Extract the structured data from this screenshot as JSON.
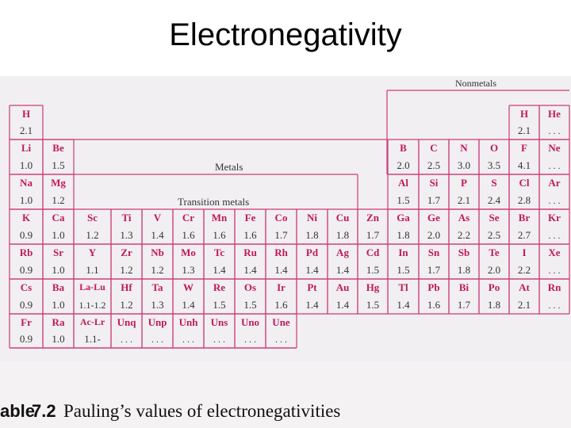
{
  "page": {
    "title": "Electronegativity"
  },
  "figure": {
    "labels": {
      "nonmetals": "Nonmetals",
      "metals": "Metals",
      "transition_metals": "Transition metals"
    },
    "caption": {
      "prefix": "able",
      "number": "7.2",
      "text": "Pauling’s values of electronegativities"
    },
    "colors": {
      "symbol": "#c2185b",
      "grid_line": "#cc3b7a",
      "value": "#333333"
    },
    "elements": [
      {
        "col": 0,
        "row": 0,
        "symbol": "H",
        "value": "2.1"
      },
      {
        "col": 16,
        "row": 0,
        "symbol": "H",
        "value": "2.1"
      },
      {
        "col": 17,
        "row": 0,
        "symbol": "He",
        "value": ". . ."
      },
      {
        "col": 0,
        "row": 1,
        "symbol": "Li",
        "value": "1.0"
      },
      {
        "col": 1,
        "row": 1,
        "symbol": "Be",
        "value": "1.5"
      },
      {
        "col": 12,
        "row": 1,
        "symbol": "B",
        "value": "2.0"
      },
      {
        "col": 13,
        "row": 1,
        "symbol": "C",
        "value": "2.5"
      },
      {
        "col": 14,
        "row": 1,
        "symbol": "N",
        "value": "3.0"
      },
      {
        "col": 15,
        "row": 1,
        "symbol": "O",
        "value": "3.5"
      },
      {
        "col": 16,
        "row": 1,
        "symbol": "F",
        "value": "4.1"
      },
      {
        "col": 17,
        "row": 1,
        "symbol": "Ne",
        "value": ". . ."
      },
      {
        "col": 0,
        "row": 2,
        "symbol": "Na",
        "value": "1.0"
      },
      {
        "col": 1,
        "row": 2,
        "symbol": "Mg",
        "value": "1.2"
      },
      {
        "col": 12,
        "row": 2,
        "symbol": "Al",
        "value": "1.5"
      },
      {
        "col": 13,
        "row": 2,
        "symbol": "Si",
        "value": "1.7"
      },
      {
        "col": 14,
        "row": 2,
        "symbol": "P",
        "value": "2.1"
      },
      {
        "col": 15,
        "row": 2,
        "symbol": "S",
        "value": "2.4"
      },
      {
        "col": 16,
        "row": 2,
        "symbol": "Cl",
        "value": "2.8"
      },
      {
        "col": 17,
        "row": 2,
        "symbol": "Ar",
        "value": ". . ."
      },
      {
        "col": 0,
        "row": 3,
        "symbol": "K",
        "value": "0.9"
      },
      {
        "col": 1,
        "row": 3,
        "symbol": "Ca",
        "value": "1.0"
      },
      {
        "col": 2,
        "row": 3,
        "symbol": "Sc",
        "value": "1.2"
      },
      {
        "col": 3,
        "row": 3,
        "symbol": "Ti",
        "value": "1.3"
      },
      {
        "col": 4,
        "row": 3,
        "symbol": "V",
        "value": "1.4"
      },
      {
        "col": 5,
        "row": 3,
        "symbol": "Cr",
        "value": "1.6"
      },
      {
        "col": 6,
        "row": 3,
        "symbol": "Mn",
        "value": "1.6"
      },
      {
        "col": 7,
        "row": 3,
        "symbol": "Fe",
        "value": "1.6"
      },
      {
        "col": 8,
        "row": 3,
        "symbol": "Co",
        "value": "1.7"
      },
      {
        "col": 9,
        "row": 3,
        "symbol": "Ni",
        "value": "1.8"
      },
      {
        "col": 10,
        "row": 3,
        "symbol": "Cu",
        "value": "1.8"
      },
      {
        "col": 11,
        "row": 3,
        "symbol": "Zn",
        "value": "1.7"
      },
      {
        "col": 12,
        "row": 3,
        "symbol": "Ga",
        "value": "1.8"
      },
      {
        "col": 13,
        "row": 3,
        "symbol": "Ge",
        "value": "2.0"
      },
      {
        "col": 14,
        "row": 3,
        "symbol": "As",
        "value": "2.2"
      },
      {
        "col": 15,
        "row": 3,
        "symbol": "Se",
        "value": "2.5"
      },
      {
        "col": 16,
        "row": 3,
        "symbol": "Br",
        "value": "2.7"
      },
      {
        "col": 17,
        "row": 3,
        "symbol": "Kr",
        "value": ". . ."
      },
      {
        "col": 0,
        "row": 4,
        "symbol": "Rb",
        "value": "0.9"
      },
      {
        "col": 1,
        "row": 4,
        "symbol": "Sr",
        "value": "1.0"
      },
      {
        "col": 2,
        "row": 4,
        "symbol": "Y",
        "value": "1.1"
      },
      {
        "col": 3,
        "row": 4,
        "symbol": "Zr",
        "value": "1.2"
      },
      {
        "col": 4,
        "row": 4,
        "symbol": "Nb",
        "value": "1.2"
      },
      {
        "col": 5,
        "row": 4,
        "symbol": "Mo",
        "value": "1.3"
      },
      {
        "col": 6,
        "row": 4,
        "symbol": "Tc",
        "value": "1.4"
      },
      {
        "col": 7,
        "row": 4,
        "symbol": "Ru",
        "value": "1.4"
      },
      {
        "col": 8,
        "row": 4,
        "symbol": "Rh",
        "value": "1.4"
      },
      {
        "col": 9,
        "row": 4,
        "symbol": "Pd",
        "value": "1.4"
      },
      {
        "col": 10,
        "row": 4,
        "symbol": "Ag",
        "value": "1.4"
      },
      {
        "col": 11,
        "row": 4,
        "symbol": "Cd",
        "value": "1.5"
      },
      {
        "col": 12,
        "row": 4,
        "symbol": "In",
        "value": "1.5"
      },
      {
        "col": 13,
        "row": 4,
        "symbol": "Sn",
        "value": "1.7"
      },
      {
        "col": 14,
        "row": 4,
        "symbol": "Sb",
        "value": "1.8"
      },
      {
        "col": 15,
        "row": 4,
        "symbol": "Te",
        "value": "2.0"
      },
      {
        "col": 16,
        "row": 4,
        "symbol": "I",
        "value": "2.2"
      },
      {
        "col": 17,
        "row": 4,
        "symbol": "Xe",
        "value": ". . ."
      },
      {
        "col": 0,
        "row": 5,
        "symbol": "Cs",
        "value": "0.9"
      },
      {
        "col": 1,
        "row": 5,
        "symbol": "Ba",
        "value": "1.0"
      },
      {
        "col": 2,
        "row": 5,
        "symbol": "La-Lu",
        "value": "1.1-1.2"
      },
      {
        "col": 3,
        "row": 5,
        "symbol": "Hf",
        "value": "1.2"
      },
      {
        "col": 4,
        "row": 5,
        "symbol": "Ta",
        "value": "1.3"
      },
      {
        "col": 5,
        "row": 5,
        "symbol": "W",
        "value": "1.4"
      },
      {
        "col": 6,
        "row": 5,
        "symbol": "Re",
        "value": "1.5"
      },
      {
        "col": 7,
        "row": 5,
        "symbol": "Os",
        "value": "1.5"
      },
      {
        "col": 8,
        "row": 5,
        "symbol": "Ir",
        "value": "1.6"
      },
      {
        "col": 9,
        "row": 5,
        "symbol": "Pt",
        "value": "1.4"
      },
      {
        "col": 10,
        "row": 5,
        "symbol": "Au",
        "value": "1.4"
      },
      {
        "col": 11,
        "row": 5,
        "symbol": "Hg",
        "value": "1.5"
      },
      {
        "col": 12,
        "row": 5,
        "symbol": "Tl",
        "value": "1.4"
      },
      {
        "col": 13,
        "row": 5,
        "symbol": "Pb",
        "value": "1.6"
      },
      {
        "col": 14,
        "row": 5,
        "symbol": "Bi",
        "value": "1.7"
      },
      {
        "col": 15,
        "row": 5,
        "symbol": "Po",
        "value": "1.8"
      },
      {
        "col": 16,
        "row": 5,
        "symbol": "At",
        "value": "2.1"
      },
      {
        "col": 17,
        "row": 5,
        "symbol": "Rn",
        "value": ". . ."
      },
      {
        "col": 0,
        "row": 6,
        "symbol": "Fr",
        "value": "0.9"
      },
      {
        "col": 1,
        "row": 6,
        "symbol": "Ra",
        "value": "1.0"
      },
      {
        "col": 2,
        "row": 6,
        "symbol": "Ac-Lr",
        "value": "1.1-"
      },
      {
        "col": 3,
        "row": 6,
        "symbol": "Unq",
        "value": ". . ."
      },
      {
        "col": 4,
        "row": 6,
        "symbol": "Unp",
        "value": ". . ."
      },
      {
        "col": 5,
        "row": 6,
        "symbol": "Unh",
        "value": ". . ."
      },
      {
        "col": 6,
        "row": 6,
        "symbol": "Uns",
        "value": ". . ."
      },
      {
        "col": 7,
        "row": 6,
        "symbol": "Uno",
        "value": ". . ."
      },
      {
        "col": 8,
        "row": 6,
        "symbol": "Une",
        "value": ". . ."
      }
    ]
  }
}
